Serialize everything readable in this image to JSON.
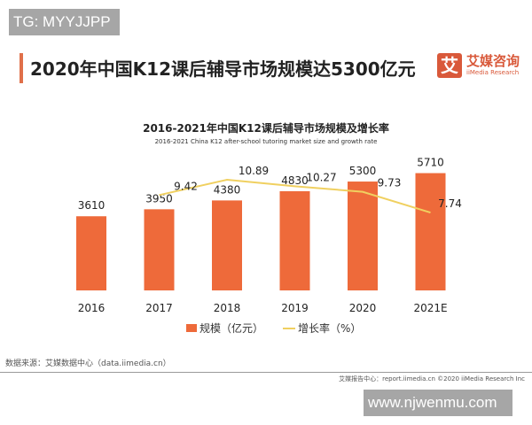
{
  "watermark_top": "TG: MYYJJPP",
  "watermark_bottom": "www.njwenmu.com",
  "header": {
    "title": "2020年中国K12课后辅导市场规模达5300亿元"
  },
  "logo": {
    "mark": "艾",
    "cn": "艾媒咨询",
    "en": "iiMedia Research"
  },
  "chart_data": {
    "type": "bar+line",
    "title": "2016-2021年中国K12课后辅导市场规模及增长率",
    "subtitle": "2016-2021 China K12 after-school tutoring market size and growth rate",
    "categories": [
      "2016",
      "2017",
      "2018",
      "2019",
      "2020",
      "2021E"
    ],
    "series": [
      {
        "name": "规模（亿元）",
        "type": "bar",
        "color": "#ee6a3a",
        "values": [
          3610,
          3950,
          4380,
          4830,
          5300,
          5710
        ]
      },
      {
        "name": "增长率（%）",
        "type": "line",
        "color": "#f0d060",
        "values": [
          null,
          9.42,
          10.89,
          10.27,
          9.73,
          7.74
        ]
      }
    ],
    "legend": "bottom",
    "grid": false
  },
  "footer": {
    "source": "数据来源：艾媒数据中心（data.iimedia.cn）",
    "report": "艾媒报告中心：report.iimedia.cn   ©2020 iiMedia Research Inc"
  }
}
